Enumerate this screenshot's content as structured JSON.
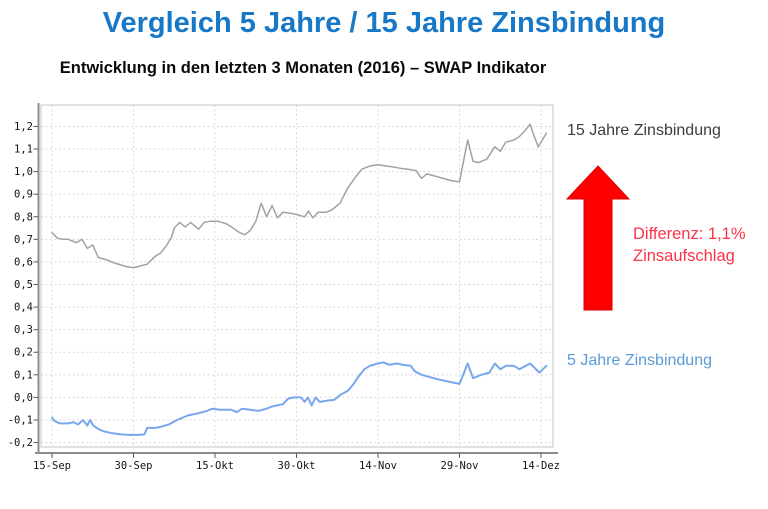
{
  "title": "Vergleich 5 Jahre / 15 Jahre Zinsbindung",
  "subtitle": "Entwicklung in den letzten 3 Monaten (2016) – SWAP Indikator",
  "annotations": {
    "series15_label": "15 Jahre Zinsbindung",
    "series5_label": "5 Jahre Zinsbindung",
    "difference_line1": "Differenz: 1,1%",
    "difference_line2": "Zinsaufschlag"
  },
  "colors": {
    "title": "#1778c8",
    "label_15y": "#3d3d3d",
    "label_5y": "#5b9bd5",
    "difference_text": "#fb3449",
    "arrow_fill": "#fe0000",
    "arrow_stroke": "#e00000",
    "line_15y": "#a2a2a2",
    "line_5y": "#78a7ee"
  },
  "chart_data": {
    "type": "line",
    "title": "Entwicklung in den letzten 3 Monaten (2016) – SWAP Indikator",
    "xlabel": "",
    "ylabel": "",
    "grid": true,
    "x_unit": "days since 15-Sep-2016",
    "xlim": [
      0,
      92.3
    ],
    "ylim": [
      -0.2,
      1.2
    ],
    "x_ticks": [
      {
        "day": 0,
        "label": "15-Sep"
      },
      {
        "day": 15,
        "label": "30-Sep"
      },
      {
        "day": 30,
        "label": "15-Okt"
      },
      {
        "day": 45,
        "label": "30-Okt"
      },
      {
        "day": 60,
        "label": "14-Nov"
      },
      {
        "day": 75,
        "label": "29-Nov"
      },
      {
        "day": 90,
        "label": "14-Dez"
      }
    ],
    "y_ticks": [
      {
        "v": 1.2,
        "label": "1,2"
      },
      {
        "v": 1.1,
        "label": "1,1"
      },
      {
        "v": 1.0,
        "label": "1,0"
      },
      {
        "v": 0.9,
        "label": "0,9"
      },
      {
        "v": 0.8,
        "label": "0,8"
      },
      {
        "v": 0.7,
        "label": "0,7"
      },
      {
        "v": 0.6,
        "label": "0,6"
      },
      {
        "v": 0.5,
        "label": "0,5"
      },
      {
        "v": 0.4,
        "label": "0,4"
      },
      {
        "v": 0.3,
        "label": "0,3"
      },
      {
        "v": 0.2,
        "label": "0,2"
      },
      {
        "v": 0.1,
        "label": "0,1"
      },
      {
        "v": 0.0,
        "label": "0,0"
      },
      {
        "v": -0.1,
        "label": "-0,1"
      },
      {
        "v": -0.2,
        "label": "-0,2"
      }
    ],
    "series": [
      {
        "name": "15 Jahre Zinsbindung",
        "color": "#a2a2a2",
        "stroke_width": 1.5,
        "points": [
          [
            0,
            0.73
          ],
          [
            1,
            0.705
          ],
          [
            2,
            0.7
          ],
          [
            3,
            0.7
          ],
          [
            4.5,
            0.685
          ],
          [
            5.5,
            0.7
          ],
          [
            6.5,
            0.66
          ],
          [
            7.5,
            0.675
          ],
          [
            8.5,
            0.62
          ],
          [
            10,
            0.61
          ],
          [
            11.5,
            0.595
          ],
          [
            13.5,
            0.58
          ],
          [
            15,
            0.575
          ],
          [
            16,
            0.58
          ],
          [
            17.5,
            0.59
          ],
          [
            19,
            0.625
          ],
          [
            20,
            0.64
          ],
          [
            21,
            0.67
          ],
          [
            22,
            0.71
          ],
          [
            22.5,
            0.75
          ],
          [
            23.5,
            0.775
          ],
          [
            24.5,
            0.755
          ],
          [
            25.5,
            0.775
          ],
          [
            27,
            0.745
          ],
          [
            28,
            0.775
          ],
          [
            29,
            0.78
          ],
          [
            30.5,
            0.78
          ],
          [
            32,
            0.77
          ],
          [
            33,
            0.755
          ],
          [
            34.5,
            0.73
          ],
          [
            35.5,
            0.72
          ],
          [
            36.5,
            0.74
          ],
          [
            37.5,
            0.78
          ],
          [
            38.5,
            0.86
          ],
          [
            39.5,
            0.8
          ],
          [
            40.5,
            0.85
          ],
          [
            41.5,
            0.795
          ],
          [
            42.5,
            0.82
          ],
          [
            44,
            0.815
          ],
          [
            45,
            0.81
          ],
          [
            46.5,
            0.8
          ],
          [
            47.2,
            0.825
          ],
          [
            48,
            0.795
          ],
          [
            49,
            0.82
          ],
          [
            50.5,
            0.82
          ],
          [
            51.5,
            0.83
          ],
          [
            53,
            0.86
          ],
          [
            54.5,
            0.93
          ],
          [
            56,
            0.98
          ],
          [
            57,
            1.01
          ],
          [
            58.5,
            1.025
          ],
          [
            60,
            1.03
          ],
          [
            61.5,
            1.025
          ],
          [
            63,
            1.02
          ],
          [
            64,
            1.015
          ],
          [
            65.5,
            1.01
          ],
          [
            67,
            1.005
          ],
          [
            68,
            0.97
          ],
          [
            69,
            0.99
          ],
          [
            70.5,
            0.98
          ],
          [
            72,
            0.97
          ],
          [
            73.5,
            0.96
          ],
          [
            75,
            0.955
          ],
          [
            76.5,
            1.14
          ],
          [
            77.5,
            1.045
          ],
          [
            78.5,
            1.04
          ],
          [
            80,
            1.055
          ],
          [
            81.5,
            1.11
          ],
          [
            82.5,
            1.09
          ],
          [
            83.5,
            1.13
          ],
          [
            85,
            1.14
          ],
          [
            86,
            1.155
          ],
          [
            87,
            1.18
          ],
          [
            88,
            1.21
          ],
          [
            88.7,
            1.16
          ],
          [
            89.5,
            1.11
          ],
          [
            91,
            1.17
          ]
        ]
      },
      {
        "name": "5 Jahre Zinsbindung",
        "color": "#78a7ee",
        "stroke_width": 2,
        "points": [
          [
            0,
            -0.09
          ],
          [
            0.5,
            -0.105
          ],
          [
            1.5,
            -0.115
          ],
          [
            3,
            -0.115
          ],
          [
            4,
            -0.11
          ],
          [
            4.8,
            -0.12
          ],
          [
            5.7,
            -0.1
          ],
          [
            6.5,
            -0.125
          ],
          [
            7,
            -0.1
          ],
          [
            7.6,
            -0.125
          ],
          [
            8.5,
            -0.14
          ],
          [
            9.5,
            -0.15
          ],
          [
            11,
            -0.158
          ],
          [
            12.5,
            -0.163
          ],
          [
            14,
            -0.166
          ],
          [
            16,
            -0.166
          ],
          [
            17,
            -0.164
          ],
          [
            17.5,
            -0.135
          ],
          [
            19,
            -0.135
          ],
          [
            20,
            -0.13
          ],
          [
            21.5,
            -0.12
          ],
          [
            23,
            -0.1
          ],
          [
            25,
            -0.08
          ],
          [
            27,
            -0.07
          ],
          [
            28.5,
            -0.06
          ],
          [
            29.5,
            -0.05
          ],
          [
            31,
            -0.055
          ],
          [
            33,
            -0.055
          ],
          [
            34,
            -0.065
          ],
          [
            35,
            -0.05
          ],
          [
            36.5,
            -0.055
          ],
          [
            38,
            -0.06
          ],
          [
            39.5,
            -0.05
          ],
          [
            40.5,
            -0.04
          ],
          [
            41.5,
            -0.035
          ],
          [
            42.5,
            -0.03
          ],
          [
            43.5,
            -0.005
          ],
          [
            44.5,
            0.0
          ],
          [
            45.8,
            0.0
          ],
          [
            46.5,
            -0.02
          ],
          [
            47.1,
            0.0
          ],
          [
            47.8,
            -0.035
          ],
          [
            48.5,
            0.0
          ],
          [
            49.3,
            -0.02
          ],
          [
            50.5,
            -0.015
          ],
          [
            52,
            -0.01
          ],
          [
            53,
            0.01
          ],
          [
            54.5,
            0.03
          ],
          [
            55.5,
            0.06
          ],
          [
            56.5,
            0.095
          ],
          [
            57.5,
            0.125
          ],
          [
            58.5,
            0.14
          ],
          [
            60,
            0.15
          ],
          [
            61,
            0.155
          ],
          [
            62,
            0.145
          ],
          [
            63.5,
            0.15
          ],
          [
            64.5,
            0.145
          ],
          [
            66,
            0.14
          ],
          [
            66.8,
            0.115
          ],
          [
            68,
            0.1
          ],
          [
            69.5,
            0.09
          ],
          [
            71,
            0.08
          ],
          [
            73,
            0.07
          ],
          [
            75,
            0.06
          ],
          [
            76.5,
            0.15
          ],
          [
            77.5,
            0.085
          ],
          [
            79,
            0.1
          ],
          [
            80.5,
            0.11
          ],
          [
            81.5,
            0.15
          ],
          [
            82.5,
            0.125
          ],
          [
            83.6,
            0.14
          ],
          [
            85,
            0.14
          ],
          [
            86,
            0.125
          ],
          [
            88,
            0.15
          ],
          [
            89.7,
            0.11
          ],
          [
            91,
            0.14
          ]
        ]
      }
    ],
    "legend_position": "right-annotations"
  }
}
